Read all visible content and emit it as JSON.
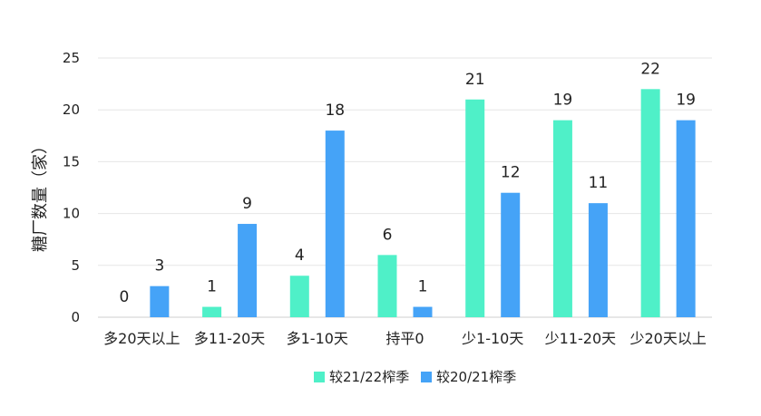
{
  "chart_data": {
    "type": "bar",
    "title": "",
    "xlabel": "",
    "ylabel": "糖厂数量（家）",
    "ylim": [
      0,
      25
    ],
    "yticks": [
      0,
      5,
      10,
      15,
      20,
      25
    ],
    "grid": true,
    "legend_position": "bottom",
    "categories": [
      "多20天以上",
      "多11-20天",
      "多1-10天",
      "持平0",
      "少1-10天",
      "少11-20天",
      "少20天以上"
    ],
    "series": [
      {
        "name": "较21/22榨季",
        "color": "#4ff0c8",
        "values": [
          0,
          1,
          4,
          6,
          21,
          19,
          22
        ]
      },
      {
        "name": "较20/21榨季",
        "color": "#45a3f7",
        "values": [
          3,
          9,
          18,
          1,
          12,
          11,
          19
        ]
      }
    ]
  }
}
